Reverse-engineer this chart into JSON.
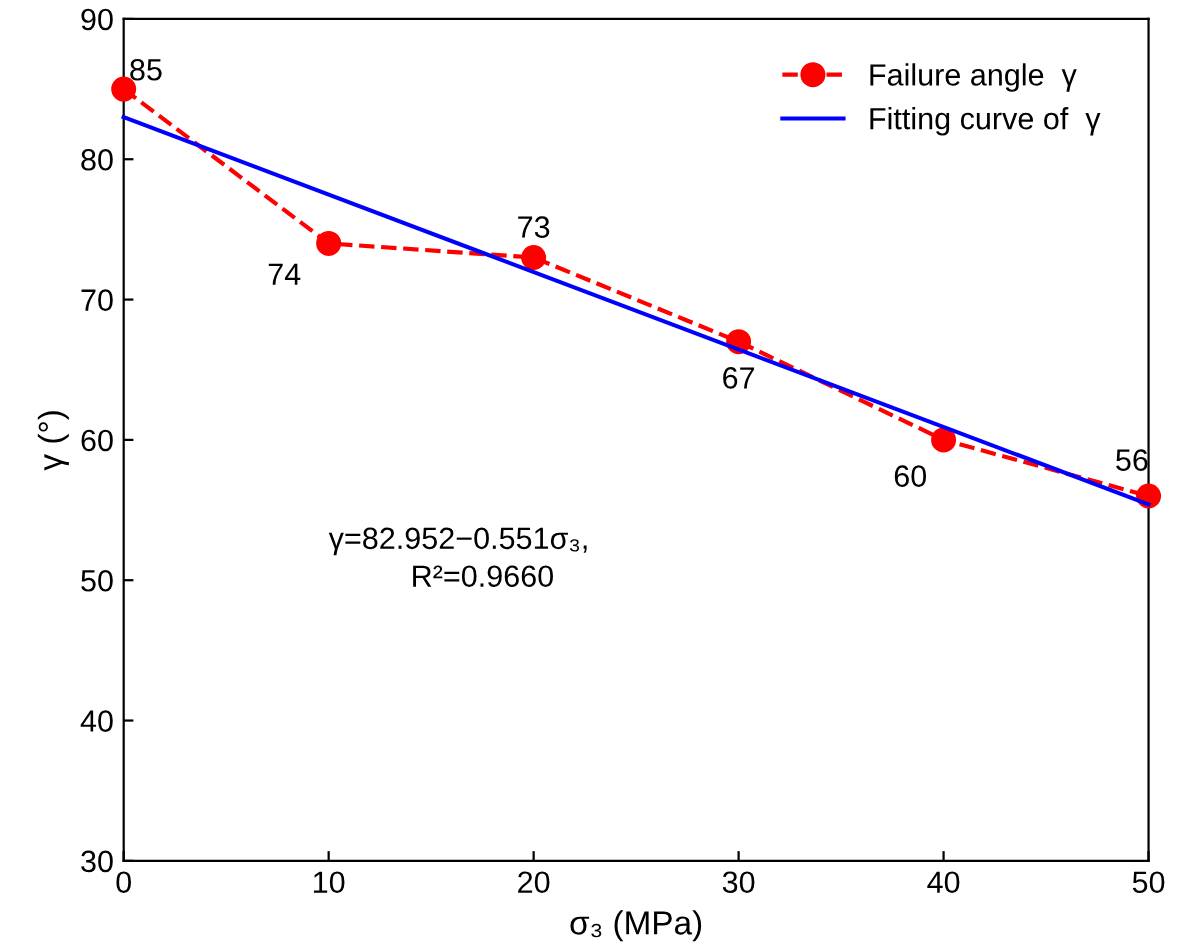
{
  "chart_data": {
    "type": "line",
    "xlabel": "σ₃ (MPa)",
    "ylabel": "γ (°)",
    "xlim": [
      0,
      50
    ],
    "xticks": [
      0,
      10,
      20,
      30,
      40,
      50
    ],
    "ylim": [
      30,
      90
    ],
    "yticks": [
      30,
      40,
      50,
      60,
      70,
      80,
      90
    ],
    "series": [
      {
        "name": "Failure angle  γ",
        "color": "#ff0000",
        "x": [
          0,
          10,
          20,
          30,
          40,
          50
        ],
        "values": [
          85,
          74,
          73,
          67,
          60,
          56
        ],
        "marker": "circle",
        "line_style": "dashed",
        "value_labels": [
          "85",
          "74",
          "73",
          "67",
          "60",
          "56"
        ]
      },
      {
        "name": "Fitting curve of  γ",
        "color": "#0000ff",
        "x": [
          0,
          50
        ],
        "values": [
          83,
          55.4
        ],
        "marker": "none",
        "line_style": "solid"
      }
    ],
    "annotations": [
      "γ=82.952−0.551σ₃,",
      "R²=0.9660"
    ],
    "legend": "top right",
    "grid": false
  }
}
